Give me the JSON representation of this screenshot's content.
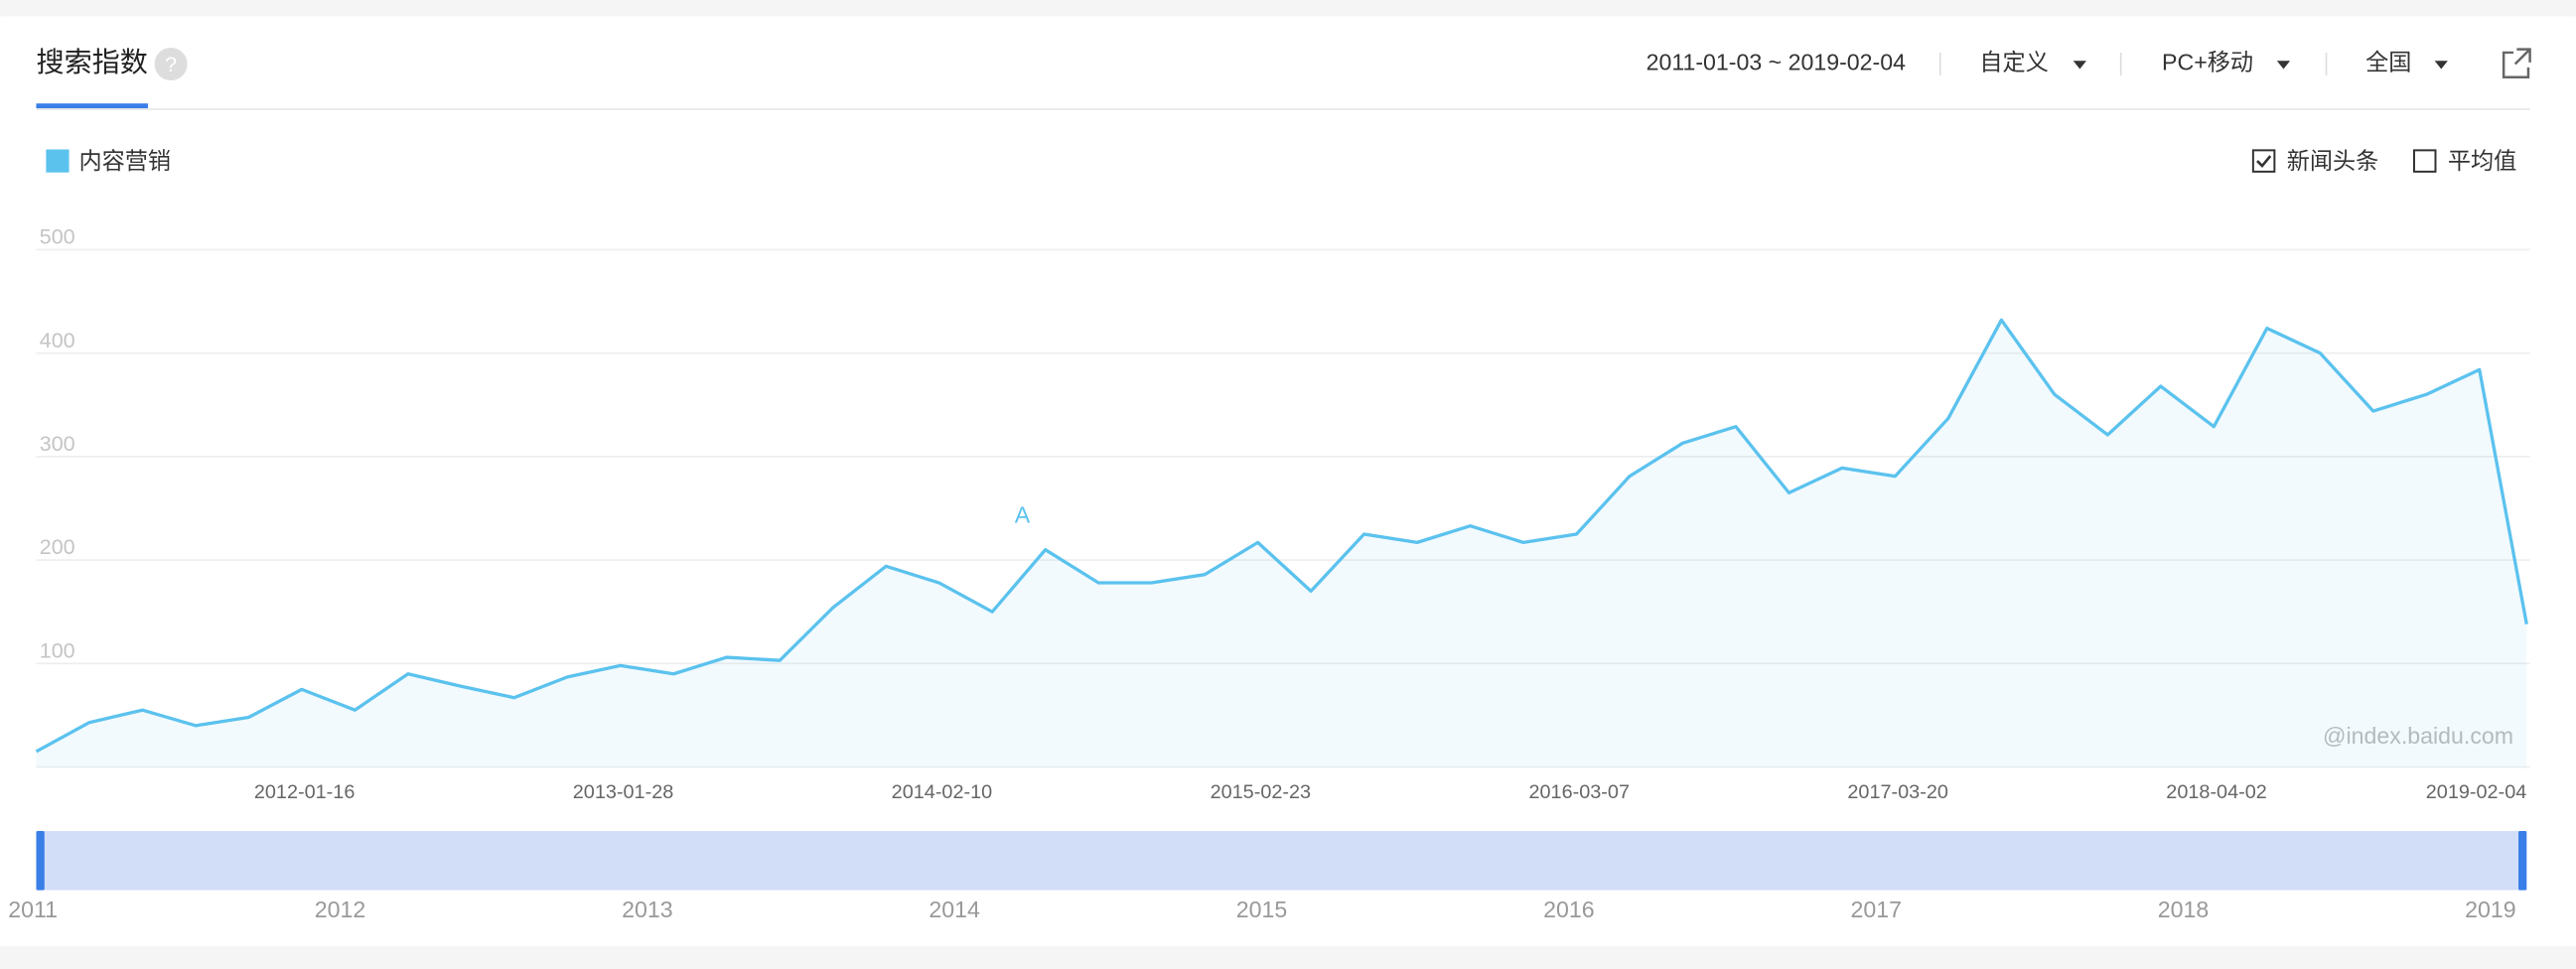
{
  "header": {
    "title": "搜索指数",
    "date_range": "2011-01-03 ~ 2019-02-04",
    "menus": [
      "自定义",
      "PC+移动",
      "全国"
    ]
  },
  "options": {
    "checkboxes": [
      {
        "label": "新闻头条",
        "checked": true
      },
      {
        "label": "平均值",
        "checked": false
      }
    ]
  },
  "chart_data": {
    "type": "line",
    "fill": true,
    "grid": true,
    "x": [
      "2011-01-03",
      "2011-03-07",
      "2011-05-09",
      "2011-07-11",
      "2011-09-12",
      "2011-11-14",
      "2012-01-16",
      "2012-03-19",
      "2012-05-21",
      "2012-07-23",
      "2012-09-24",
      "2012-11-26",
      "2013-01-28",
      "2013-04-01",
      "2013-06-03",
      "2013-08-05",
      "2013-10-07",
      "2013-12-09",
      "2014-02-10",
      "2014-04-14",
      "2014-06-16",
      "2014-08-18",
      "2014-10-20",
      "2014-12-22",
      "2015-02-23",
      "2015-04-27",
      "2015-06-29",
      "2015-08-31",
      "2015-11-02",
      "2016-01-04",
      "2016-03-07",
      "2016-05-09",
      "2016-07-11",
      "2016-09-12",
      "2016-11-14",
      "2017-01-16",
      "2017-03-20",
      "2017-05-22",
      "2017-07-24",
      "2017-09-25",
      "2017-11-27",
      "2018-01-29",
      "2018-04-02",
      "2018-06-04",
      "2018-08-06",
      "2018-10-08",
      "2018-12-10",
      "2019-02-04"
    ],
    "series": [
      {
        "name": "内容营销",
        "color": "#5bc2ee",
        "values": [
          15,
          43,
          55,
          40,
          48,
          75,
          55,
          90,
          78,
          67,
          87,
          98,
          90,
          106,
          103,
          154,
          194,
          178,
          150,
          210,
          178,
          178,
          186,
          217,
          170,
          225,
          217,
          233,
          217,
          225,
          281,
          313,
          329,
          265,
          289,
          281,
          337,
          432,
          360,
          321,
          368,
          329,
          424,
          400,
          344,
          360,
          384,
          138
        ]
      }
    ],
    "xlim": [
      "2011-01-03",
      "2019-02-04"
    ],
    "xticks": [
      "2012-01-16",
      "2013-01-28",
      "2014-02-10",
      "2015-02-23",
      "2016-03-07",
      "2017-03-20",
      "2018-04-02",
      "2019-02-04"
    ],
    "ylim": [
      0,
      500
    ],
    "yticks": [
      100,
      200,
      300,
      400,
      500
    ],
    "annotations": [
      {
        "text": "A",
        "x": "2014-04-14",
        "y": 210
      }
    ],
    "watermark": "@index.baidu.com",
    "slider": {
      "labels": [
        "2011",
        "2012",
        "2013",
        "2014",
        "2015",
        "2016",
        "2017",
        "2018",
        "2019"
      ]
    }
  }
}
